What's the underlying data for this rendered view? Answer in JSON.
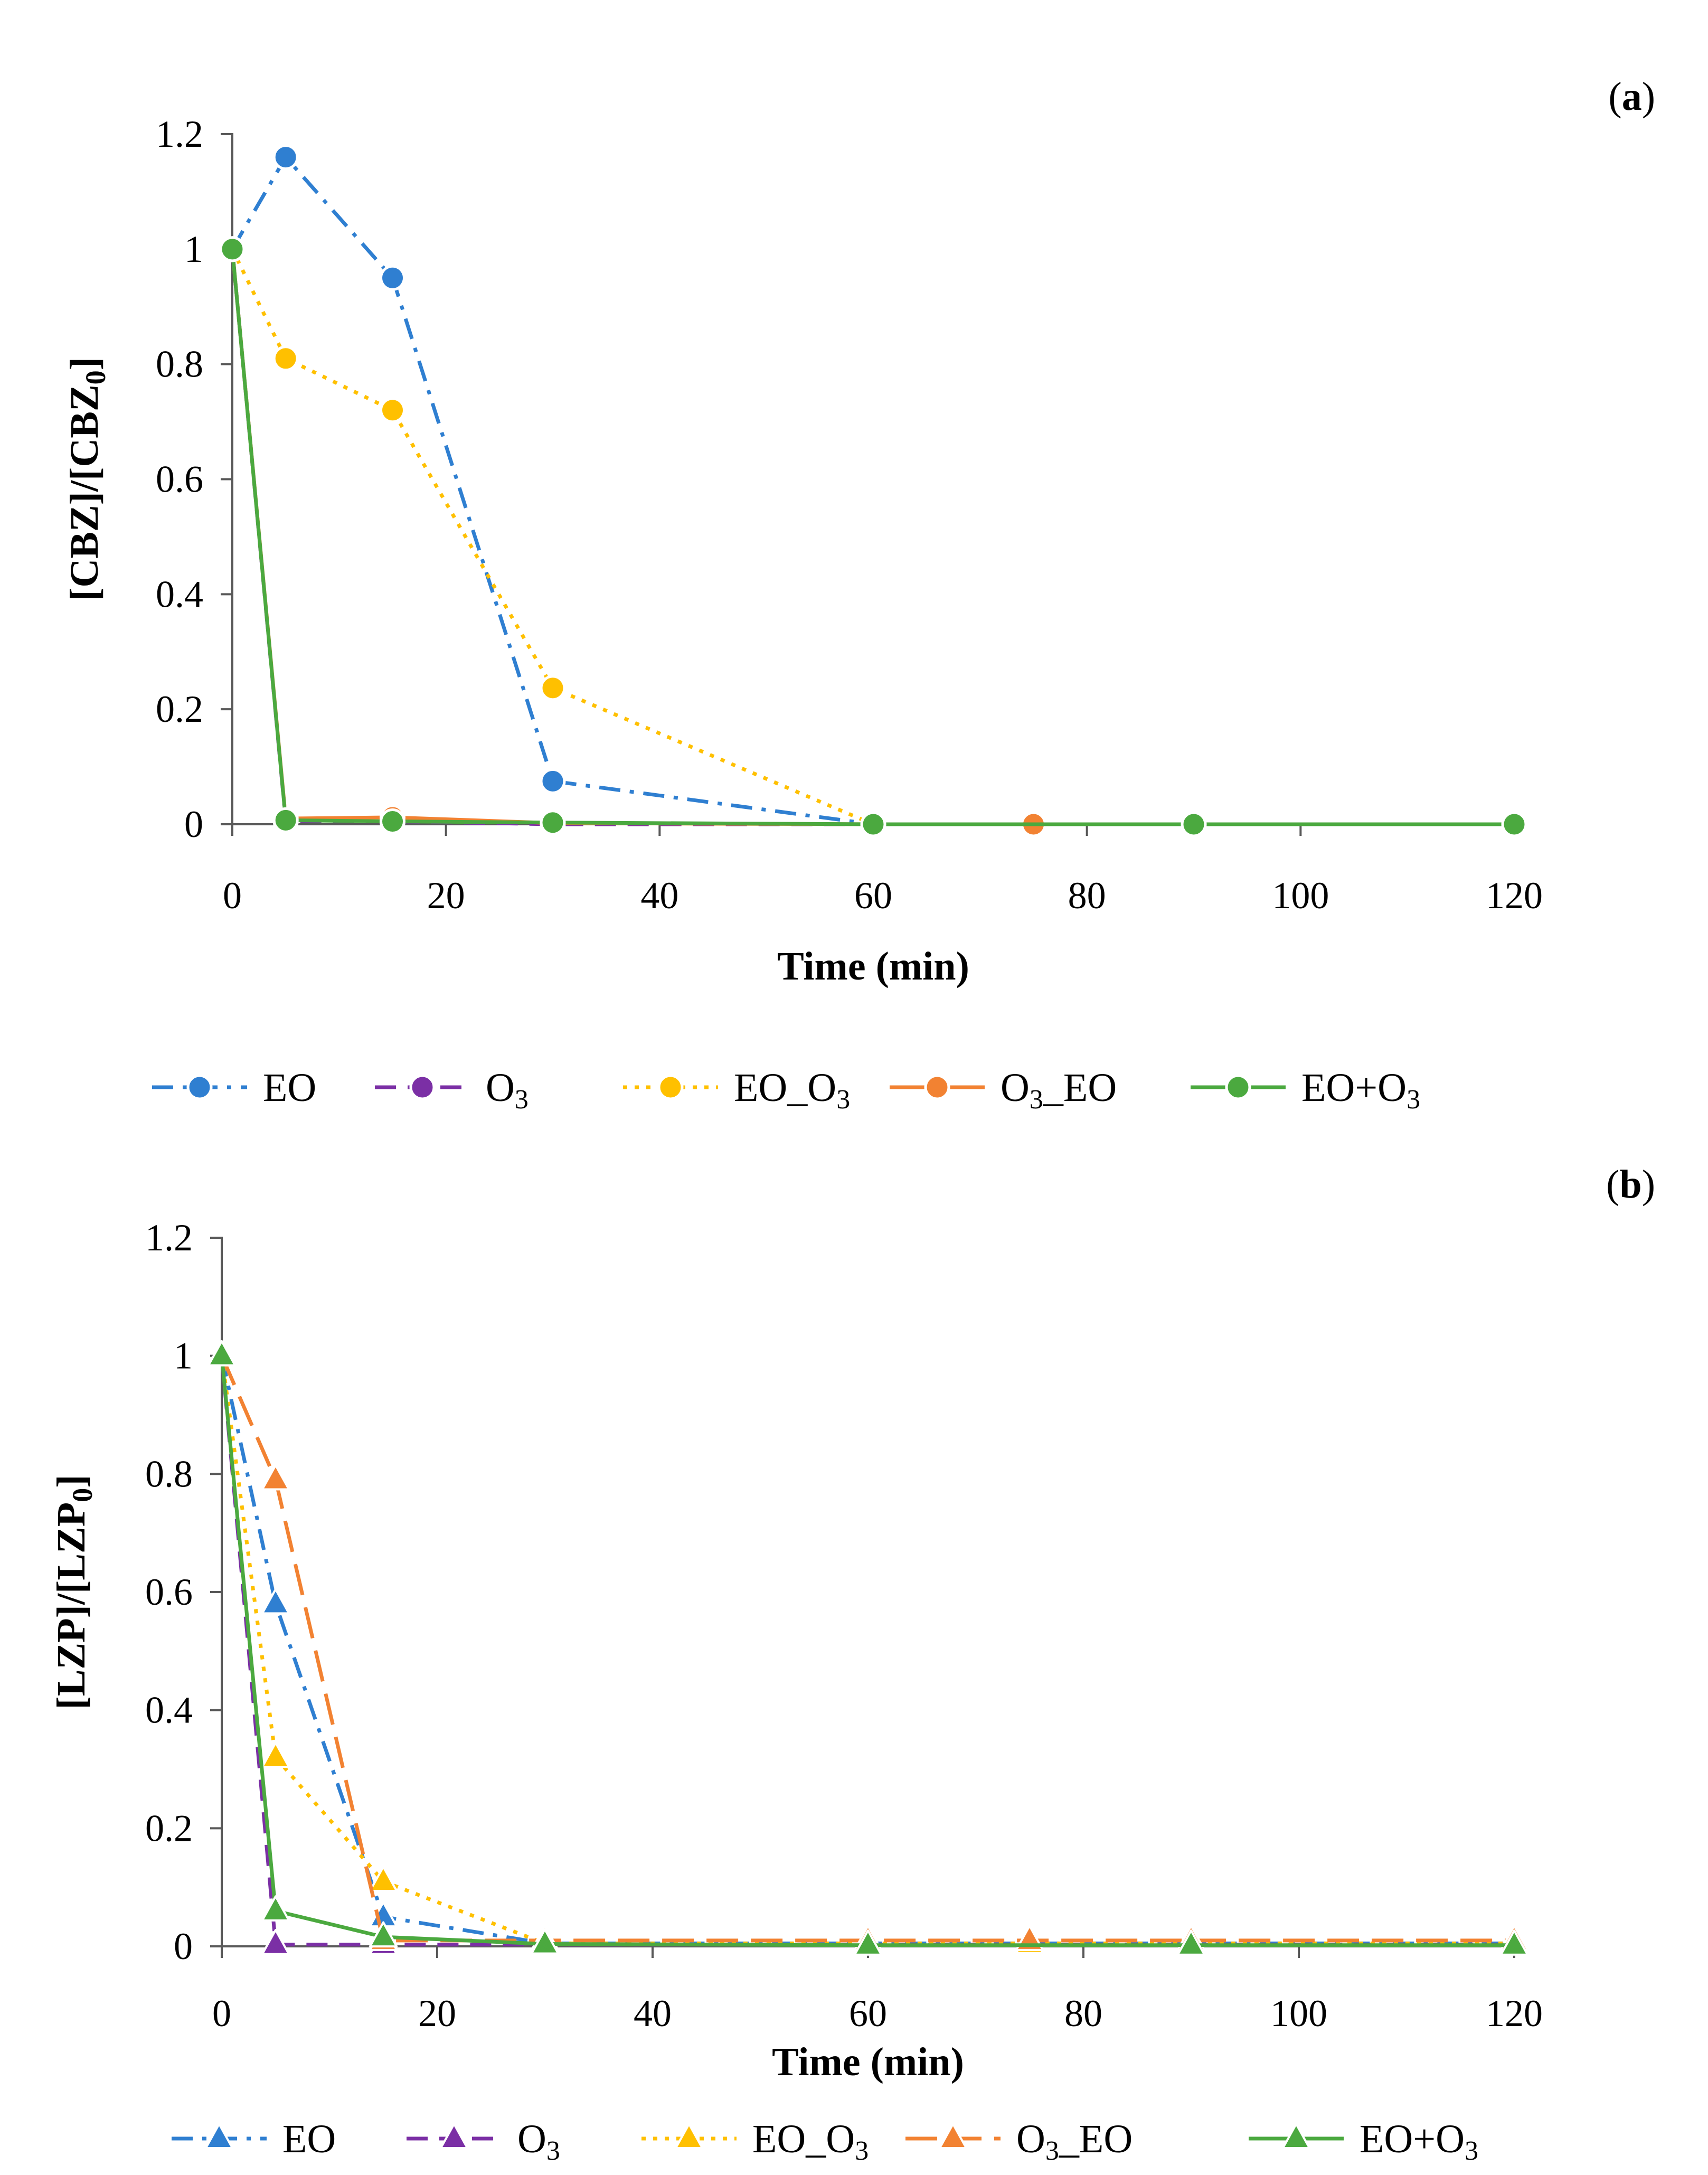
{
  "colors": {
    "EO": "#2f7fd1",
    "O3": "#7b2fa5",
    "EO_O3": "#ffc000",
    "O3_EO": "#f28232",
    "EO+O3": "#4ba93f"
  },
  "chart_data": [
    {
      "type": "line",
      "panel_label": {
        "open": "(",
        "letter": "a",
        "close": ")"
      },
      "xlabel": "Time (min)",
      "ylabel": {
        "prefix": "[CBZ]/[CBZ",
        "sub": "0",
        "suffix": "]"
      },
      "xlim": [
        0,
        120
      ],
      "ylim": [
        0,
        1.2
      ],
      "xticks": [
        0,
        20,
        40,
        60,
        80,
        100,
        120
      ],
      "yticks": [
        0,
        0.2,
        0.4,
        0.6,
        0.8,
        1,
        1.2
      ],
      "xtick_labels": [
        "0",
        "20",
        "40",
        "60",
        "80",
        "100",
        "120"
      ],
      "ytick_labels": [
        "0",
        "0.2",
        "0.4",
        "0.6",
        "0.8",
        "1",
        "1.2"
      ],
      "marker": "circle",
      "series": [
        {
          "key": "EO",
          "name": "EO",
          "dash": "dashdot",
          "x": [
            0,
            5,
            15,
            30,
            60,
            90,
            120
          ],
          "values": [
            1,
            1.16,
            0.95,
            0.075,
            0,
            0,
            0
          ]
        },
        {
          "key": "O3",
          "name": "O₃",
          "dash": "dash",
          "x": [
            0,
            5,
            15,
            30,
            60,
            90,
            120
          ],
          "values": [
            1,
            0.005,
            0.005,
            0,
            0,
            0,
            0
          ]
        },
        {
          "key": "EO_O3",
          "name": "EO_O₃",
          "dash": "dot",
          "x": [
            0,
            5,
            15,
            30,
            60,
            90,
            120
          ],
          "values": [
            1,
            0.81,
            0.72,
            0.237,
            0,
            0,
            0
          ]
        },
        {
          "key": "O3_EO",
          "name": "O₃_EO",
          "dash": "solid",
          "x": [
            0,
            5,
            15,
            30,
            60,
            75,
            90,
            120
          ],
          "values": [
            1,
            0.01,
            0.012,
            0.002,
            0,
            0,
            0,
            0
          ]
        },
        {
          "key": "EO+O3",
          "name": "EO+O₃",
          "dash": "solid",
          "x": [
            0,
            5,
            15,
            30,
            60,
            90,
            120
          ],
          "values": [
            1,
            0.007,
            0.005,
            0.003,
            0,
            0,
            0
          ]
        }
      ],
      "legend": [
        {
          "key": "EO",
          "label": "EO"
        },
        {
          "key": "O3",
          "label": "O",
          "sub": "3"
        },
        {
          "key": "EO_O3",
          "label": "EO_O",
          "sub": "3"
        },
        {
          "key": "O3_EO",
          "label": "O",
          "sub": "3",
          "after": "_EO"
        },
        {
          "key": "EO+O3",
          "label": "EO+O",
          "sub": "3"
        }
      ]
    },
    {
      "type": "line",
      "panel_label": {
        "open": "(",
        "letter": "b",
        "close": ")"
      },
      "xlabel": "Time (min)",
      "ylabel": {
        "prefix": "[LZP]/[LZP",
        "sub": "0",
        "suffix": "]"
      },
      "xlim": [
        0,
        120
      ],
      "ylim": [
        0,
        1.2
      ],
      "xticks": [
        0,
        20,
        40,
        60,
        80,
        100,
        120
      ],
      "yticks": [
        0,
        0.2,
        0.4,
        0.6,
        0.8,
        1,
        1.2
      ],
      "xtick_labels": [
        "0",
        "20",
        "40",
        "60",
        "80",
        "100",
        "120"
      ],
      "ytick_labels": [
        "0",
        "0.2",
        "0.4",
        "0.6",
        "0.8",
        "1",
        "1.2"
      ],
      "marker": "triangle",
      "series": [
        {
          "key": "EO",
          "name": "EO",
          "dash": "dashdot",
          "x": [
            0,
            5,
            15,
            30,
            60,
            90,
            120
          ],
          "values": [
            1,
            0.58,
            0.05,
            0.005,
            0.005,
            0.005,
            0.005
          ]
        },
        {
          "key": "O3",
          "name": "O₃",
          "dash": "dash",
          "x": [
            0,
            5,
            15,
            30,
            60,
            90,
            120
          ],
          "values": [
            1,
            0.003,
            0.003,
            0.003,
            0.003,
            0.003,
            0.003
          ]
        },
        {
          "key": "EO_O3",
          "name": "EO_O₃",
          "dash": "dot",
          "x": [
            0,
            5,
            15,
            30,
            60,
            75,
            90,
            120
          ],
          "values": [
            1,
            0.32,
            0.11,
            0.005,
            0.005,
            0.005,
            0.005,
            0.005
          ]
        },
        {
          "key": "O3_EO",
          "name": "O₃_EO",
          "dash": "longdash",
          "x": [
            0,
            5,
            15,
            30,
            60,
            75,
            90,
            120
          ],
          "values": [
            1,
            0.79,
            0.01,
            0.01,
            0.01,
            0.01,
            0.01,
            0.01
          ]
        },
        {
          "key": "EO+O3",
          "name": "EO+O₃",
          "dash": "solid",
          "x": [
            0,
            5,
            15,
            30,
            60,
            90,
            120
          ],
          "values": [
            1,
            0.06,
            0.016,
            0.004,
            0.002,
            0.002,
            0.002
          ]
        }
      ],
      "legend": [
        {
          "key": "EO",
          "label": "EO"
        },
        {
          "key": "O3",
          "label": "O",
          "sub": "3"
        },
        {
          "key": "EO_O3",
          "label": "EO_O",
          "sub": "3"
        },
        {
          "key": "O3_EO",
          "label": "O",
          "sub": "3",
          "after": "_EO"
        },
        {
          "key": "EO+O3",
          "label": "EO+O",
          "sub": "3"
        }
      ]
    }
  ]
}
